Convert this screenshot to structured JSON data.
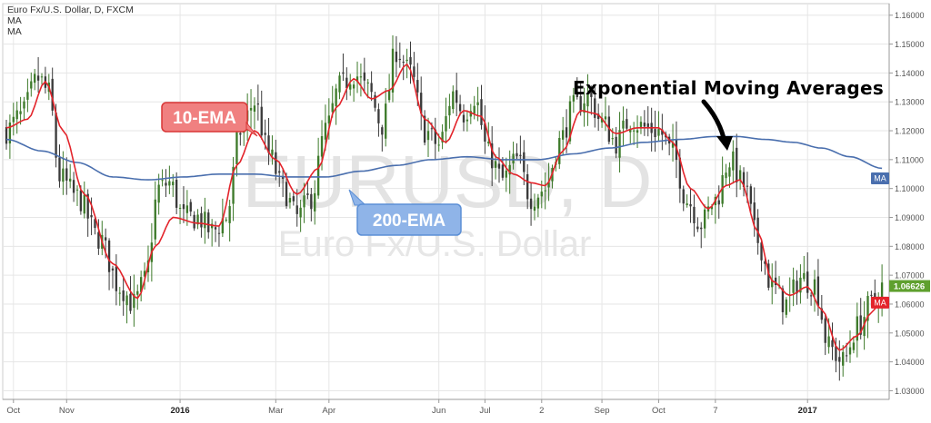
{
  "legend": {
    "symbol_line": "Euro Fx/U.S. Dollar, D, FXCM",
    "ma1": "MA",
    "ma2": "MA"
  },
  "watermark": {
    "symbol": "EURUSD, D",
    "name": "Euro Fx/U.S. Dollar"
  },
  "annotations": {
    "ema10": "10-EMA",
    "ema200": "200-EMA",
    "title": "Exponential Moving Averages"
  },
  "price_tags": {
    "ma200_label": "MA",
    "last_price": "1.06626",
    "ema10_label": "MA"
  },
  "colors": {
    "up_candle": "#3d7a2a",
    "down_candle": "#3a3a3a",
    "ema10": "#e3242b",
    "ema200": "#4a6fae",
    "ema10_box_fill": "#f08080",
    "ema10_box_border": "#d93636",
    "ema200_box_fill": "#8fb4e8",
    "ema200_box_border": "#5b8fd6",
    "last_price_tag": "#5fa02e",
    "grid": "#e6e6e6"
  },
  "chart_data": {
    "type": "candlestick",
    "title": "Euro Fx/U.S. Dollar, D, FXCM",
    "y_axis": {
      "ylim": [
        1.027,
        1.164
      ],
      "ticks": [
        1.03,
        1.04,
        1.05,
        1.06,
        1.07,
        1.08,
        1.09,
        1.1,
        1.11,
        1.12,
        1.13,
        1.14,
        1.15,
        1.16
      ],
      "tick_labels": [
        "1.03000",
        "1.04000",
        "1.05000",
        "1.06000",
        "1.07000",
        "1.08000",
        "1.09000",
        "1.10000",
        "1.11000",
        "1.12000",
        "1.13000",
        "1.14000",
        "1.15000",
        "1.16000"
      ]
    },
    "x_axis": {
      "tick_labels": [
        "Oct",
        "Nov",
        "2016",
        "Mar",
        "Apr",
        "Jun",
        "Jul",
        "2",
        "Sep",
        "Oct",
        "7",
        "2017"
      ],
      "bold_labels": [
        "2016",
        "2017"
      ]
    },
    "close_anchors": [
      [
        0,
        1.12
      ],
      [
        4,
        1.125
      ],
      [
        9,
        1.138
      ],
      [
        12,
        1.133
      ],
      [
        15,
        1.104
      ],
      [
        20,
        1.097
      ],
      [
        26,
        1.083
      ],
      [
        32,
        1.066
      ],
      [
        36,
        1.06
      ],
      [
        39,
        1.068
      ],
      [
        43,
        1.1
      ],
      [
        46,
        1.102
      ],
      [
        50,
        1.09
      ],
      [
        54,
        1.09
      ],
      [
        58,
        1.085
      ],
      [
        62,
        1.09
      ],
      [
        66,
        1.12
      ],
      [
        70,
        1.13
      ],
      [
        74,
        1.112
      ],
      [
        78,
        1.1
      ],
      [
        82,
        1.09
      ],
      [
        86,
        1.097
      ],
      [
        90,
        1.12
      ],
      [
        94,
        1.135
      ],
      [
        98,
        1.14
      ],
      [
        102,
        1.134
      ],
      [
        106,
        1.122
      ],
      [
        110,
        1.148
      ],
      [
        114,
        1.14
      ],
      [
        118,
        1.12
      ],
      [
        122,
        1.115
      ],
      [
        126,
        1.133
      ],
      [
        129,
        1.126
      ],
      [
        132,
        1.132
      ],
      [
        136,
        1.112
      ],
      [
        140,
        1.103
      ],
      [
        144,
        1.11
      ],
      [
        148,
        1.097
      ],
      [
        152,
        1.1
      ],
      [
        156,
        1.116
      ],
      [
        160,
        1.128
      ],
      [
        164,
        1.132
      ],
      [
        168,
        1.123
      ],
      [
        172,
        1.116
      ],
      [
        176,
        1.124
      ],
      [
        180,
        1.121
      ],
      [
        184,
        1.12
      ],
      [
        188,
        1.112
      ],
      [
        192,
        1.096
      ],
      [
        196,
        1.088
      ],
      [
        200,
        1.096
      ],
      [
        204,
        1.11
      ],
      [
        208,
        1.101
      ],
      [
        212,
        1.082
      ],
      [
        216,
        1.066
      ],
      [
        220,
        1.06
      ],
      [
        224,
        1.069
      ],
      [
        228,
        1.067
      ],
      [
        232,
        1.045
      ],
      [
        236,
        1.04
      ],
      [
        240,
        1.052
      ],
      [
        244,
        1.06
      ],
      [
        247,
        1.066
      ]
    ],
    "ema10_anchors": [
      [
        0,
        1.121
      ],
      [
        6,
        1.124
      ],
      [
        11,
        1.137
      ],
      [
        16,
        1.12
      ],
      [
        22,
        1.098
      ],
      [
        30,
        1.074
      ],
      [
        37,
        1.062
      ],
      [
        42,
        1.08
      ],
      [
        47,
        1.09
      ],
      [
        54,
        1.088
      ],
      [
        60,
        1.087
      ],
      [
        65,
        1.108
      ],
      [
        70,
        1.12
      ],
      [
        76,
        1.11
      ],
      [
        82,
        1.098
      ],
      [
        88,
        1.107
      ],
      [
        93,
        1.128
      ],
      [
        98,
        1.138
      ],
      [
        103,
        1.131
      ],
      [
        108,
        1.134
      ],
      [
        113,
        1.143
      ],
      [
        118,
        1.124
      ],
      [
        124,
        1.116
      ],
      [
        129,
        1.127
      ],
      [
        134,
        1.125
      ],
      [
        138,
        1.111
      ],
      [
        143,
        1.105
      ],
      [
        148,
        1.102
      ],
      [
        152,
        1.101
      ],
      [
        157,
        1.113
      ],
      [
        162,
        1.127
      ],
      [
        166,
        1.126
      ],
      [
        172,
        1.119
      ],
      [
        178,
        1.121
      ],
      [
        184,
        1.121
      ],
      [
        188,
        1.116
      ],
      [
        193,
        1.1
      ],
      [
        198,
        1.093
      ],
      [
        203,
        1.101
      ],
      [
        207,
        1.103
      ],
      [
        212,
        1.085
      ],
      [
        216,
        1.068
      ],
      [
        221,
        1.063
      ],
      [
        226,
        1.066
      ],
      [
        230,
        1.058
      ],
      [
        235,
        1.044
      ],
      [
        240,
        1.049
      ],
      [
        244,
        1.057
      ],
      [
        247,
        1.062
      ]
    ],
    "ema200_anchors": [
      [
        0,
        1.117
      ],
      [
        10,
        1.113
      ],
      [
        20,
        1.109
      ],
      [
        30,
        1.104
      ],
      [
        40,
        1.103
      ],
      [
        50,
        1.104
      ],
      [
        60,
        1.105
      ],
      [
        70,
        1.105
      ],
      [
        80,
        1.104
      ],
      [
        90,
        1.104
      ],
      [
        100,
        1.106
      ],
      [
        110,
        1.108
      ],
      [
        120,
        1.11
      ],
      [
        130,
        1.111
      ],
      [
        140,
        1.11
      ],
      [
        150,
        1.11
      ],
      [
        160,
        1.112
      ],
      [
        170,
        1.114
      ],
      [
        180,
        1.116
      ],
      [
        190,
        1.117
      ],
      [
        200,
        1.118
      ],
      [
        206,
        1.118
      ],
      [
        214,
        1.117
      ],
      [
        222,
        1.116
      ],
      [
        230,
        1.114
      ],
      [
        238,
        1.111
      ],
      [
        247,
        1.107
      ]
    ],
    "last_price": 1.06626,
    "ema10_last": 1.0605,
    "ema200_last": 1.1035,
    "grid": true
  }
}
